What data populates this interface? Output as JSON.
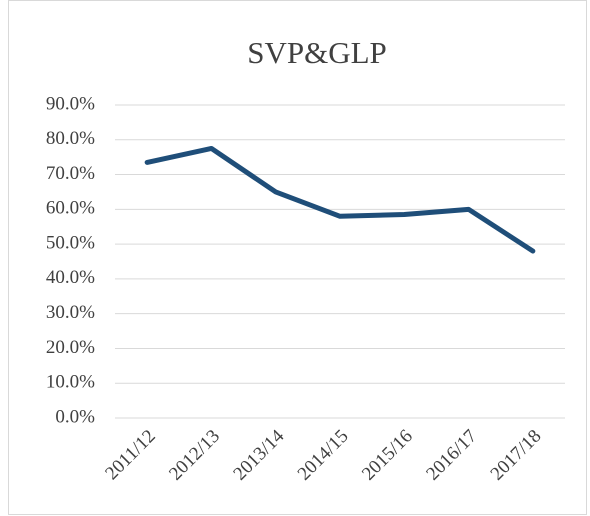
{
  "chart_data": {
    "type": "line",
    "title": "SVP&GLP",
    "categories": [
      "2011/12",
      "2012/13",
      "2013/14",
      "2014/15",
      "2015/16",
      "2016/17",
      "2017/18"
    ],
    "series": [
      {
        "name": "SVP&GLP",
        "color": "#1f4e79",
        "values": [
          73.5,
          77.5,
          65,
          58,
          58.5,
          60,
          48
        ]
      }
    ],
    "ylim": [
      0,
      90
    ],
    "yticks": [
      {
        "value": 0,
        "label": "0.0%"
      },
      {
        "value": 10,
        "label": "10.0%"
      },
      {
        "value": 20,
        "label": "20.0%"
      },
      {
        "value": 30,
        "label": "30.0%"
      },
      {
        "value": 40,
        "label": "40.0%"
      },
      {
        "value": 50,
        "label": "50.0%"
      },
      {
        "value": 60,
        "label": "60.0%"
      },
      {
        "value": 70,
        "label": "70.0%"
      },
      {
        "value": 80,
        "label": "80.0%"
      },
      {
        "value": 90,
        "label": "90.0%"
      }
    ],
    "grid": true
  }
}
